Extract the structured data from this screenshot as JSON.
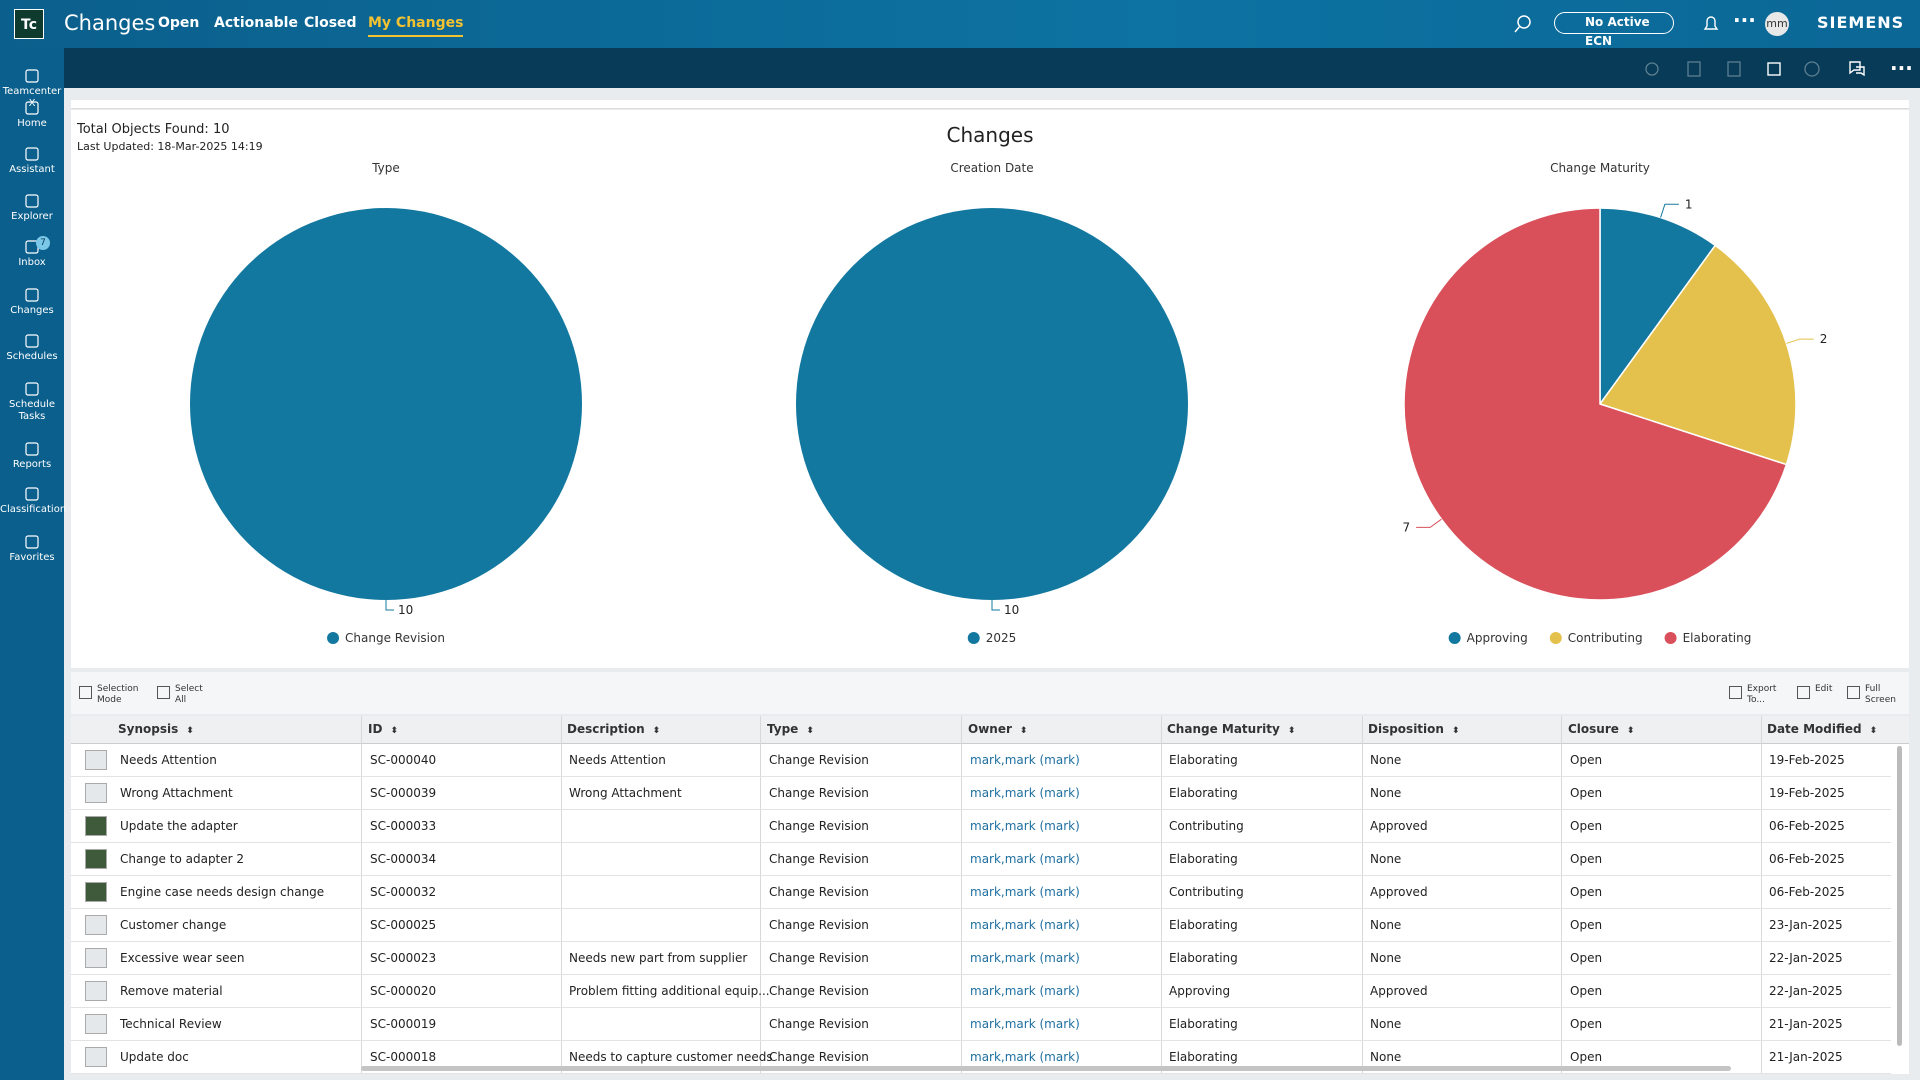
{
  "header": {
    "logo": "Tc",
    "app": "Changes",
    "tabs": [
      "Open",
      "Actionable",
      "Closed",
      "My Changes"
    ],
    "active_tab": 3,
    "ecn": "No Active ECN",
    "avatar": "mm",
    "brand": "SIEMENS"
  },
  "sidebar": {
    "items": [
      {
        "label": "Teamcenter X"
      },
      {
        "label": "Home"
      },
      {
        "label": "Assistant"
      },
      {
        "label": "Explorer"
      },
      {
        "label": "Inbox",
        "badge": 7
      },
      {
        "label": "Changes"
      },
      {
        "label": "Schedules"
      },
      {
        "label": "Schedule Tasks"
      },
      {
        "label": "Reports"
      },
      {
        "label": "Classification"
      },
      {
        "label": "Favorites"
      }
    ]
  },
  "dashboard": {
    "title": "Changes",
    "total": "Total Objects Found: 10",
    "updated": "Last Updated: 18-Mar-2025 14:19"
  },
  "chart_data": [
    {
      "type": "pie",
      "title": "Type",
      "categories": [
        "Change Revision"
      ],
      "values": [
        10
      ],
      "colors": [
        "#13789f"
      ]
    },
    {
      "type": "pie",
      "title": "Creation Date",
      "categories": [
        "2025"
      ],
      "values": [
        10
      ],
      "colors": [
        "#13789f"
      ]
    },
    {
      "type": "pie",
      "title": "Change Maturity",
      "categories": [
        "Approving",
        "Contributing",
        "Elaborating"
      ],
      "values": [
        1,
        2,
        7
      ],
      "colors": [
        "#13789f",
        "#e4c14c",
        "#d9505b"
      ]
    }
  ],
  "table": {
    "toolbar": {
      "left": [
        [
          "Selection",
          "Mode"
        ],
        [
          "Select",
          "All"
        ]
      ],
      "right": [
        [
          "Export",
          "To..."
        ],
        [
          "Edit"
        ],
        [
          "Full",
          "Screen"
        ]
      ]
    },
    "columns": [
      "Synopsis",
      "ID",
      "Description",
      "Type",
      "Owner",
      "Change Maturity",
      "Disposition",
      "Closure",
      "Date Modified"
    ],
    "rows": [
      {
        "synopsis": "Needs Attention",
        "id": "SC-000040",
        "description": "Needs Attention",
        "type": "Change Revision",
        "owner": "mark,mark (mark)",
        "maturity": "Elaborating",
        "disposition": "None",
        "closure": "Open",
        "date": "19-Feb-2025"
      },
      {
        "synopsis": "Wrong Attachment",
        "id": "SC-000039",
        "description": "Wrong Attachment",
        "type": "Change Revision",
        "owner": "mark,mark (mark)",
        "maturity": "Elaborating",
        "disposition": "None",
        "closure": "Open",
        "date": "19-Feb-2025"
      },
      {
        "synopsis": "Update the adapter",
        "id": "SC-000033",
        "type": "Change Revision",
        "owner": "mark,mark (mark)",
        "maturity": "Contributing",
        "disposition": "Approved",
        "closure": "Open",
        "date": "06-Feb-2025"
      },
      {
        "synopsis": "Change to adapter 2",
        "id": "SC-000034",
        "type": "Change Revision",
        "owner": "mark,mark (mark)",
        "maturity": "Elaborating",
        "disposition": "None",
        "closure": "Open",
        "date": "06-Feb-2025"
      },
      {
        "synopsis": "Engine case needs design change",
        "id": "SC-000032",
        "type": "Change Revision",
        "owner": "mark,mark (mark)",
        "maturity": "Contributing",
        "disposition": "Approved",
        "closure": "Open",
        "date": "06-Feb-2025"
      },
      {
        "synopsis": "Customer change",
        "id": "SC-000025",
        "type": "Change Revision",
        "owner": "mark,mark (mark)",
        "maturity": "Elaborating",
        "disposition": "None",
        "closure": "Open",
        "date": "23-Jan-2025"
      },
      {
        "synopsis": "Excessive wear seen",
        "id": "SC-000023",
        "description": "Needs new part from supplier",
        "type": "Change Revision",
        "owner": "mark,mark (mark)",
        "maturity": "Elaborating",
        "disposition": "None",
        "closure": "Open",
        "date": "22-Jan-2025"
      },
      {
        "synopsis": "Remove material",
        "id": "SC-000020",
        "description": "Problem fitting additional equip...",
        "type": "Change Revision",
        "owner": "mark,mark (mark)",
        "maturity": "Approving",
        "disposition": "Approved",
        "closure": "Open",
        "date": "22-Jan-2025"
      },
      {
        "synopsis": "Technical Review",
        "id": "SC-000019",
        "type": "Change Revision",
        "owner": "mark,mark (mark)",
        "maturity": "Elaborating",
        "disposition": "None",
        "closure": "Open",
        "date": "21-Jan-2025"
      },
      {
        "synopsis": "Update doc",
        "id": "SC-000018",
        "description": "Needs to capture customer needs",
        "type": "Change Revision",
        "owner": "mark,mark (mark)",
        "maturity": "Elaborating",
        "disposition": "None",
        "closure": "Open",
        "date": "21-Jan-2025"
      }
    ]
  }
}
